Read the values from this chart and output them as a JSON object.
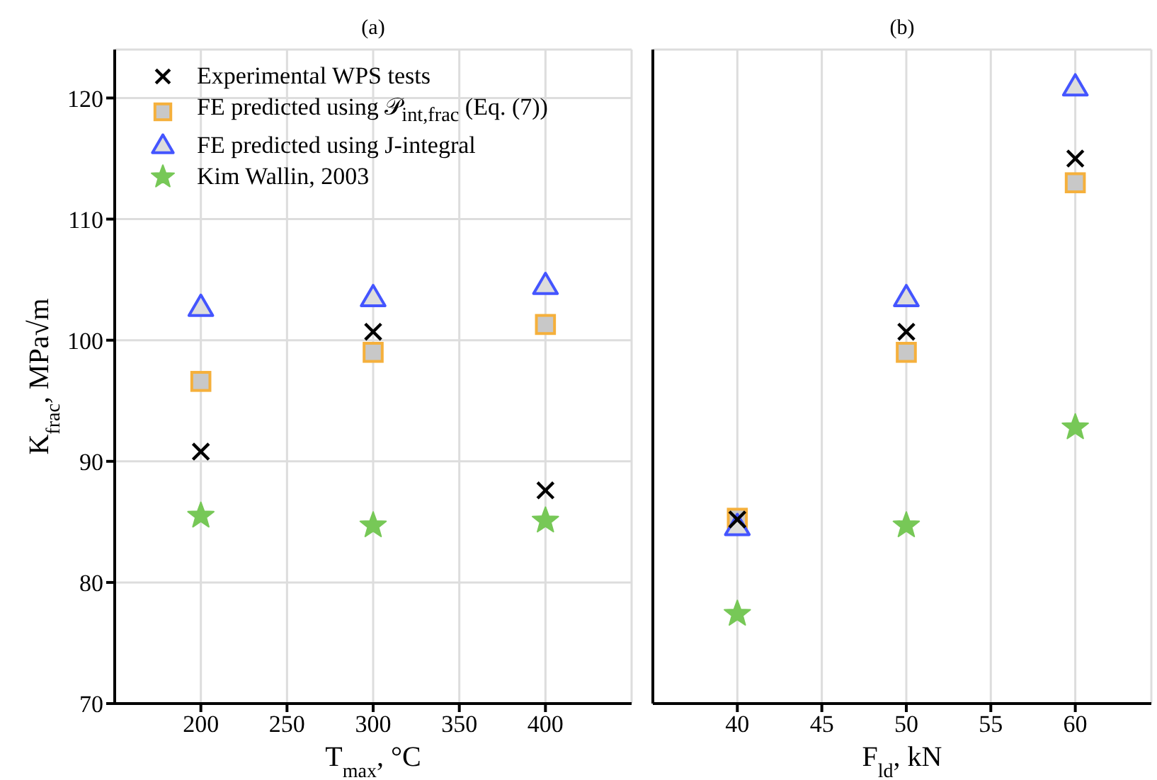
{
  "chart_data": [
    {
      "type": "scatter",
      "title": "(a)",
      "xlabel": "T$_{max}$, °C",
      "ylabel": "K$_{frac}$, MPa√m",
      "x": [
        200,
        300,
        400
      ],
      "xlim": [
        150,
        450
      ],
      "xticks": [
        200,
        250,
        300,
        350,
        400
      ],
      "ylim": [
        70,
        124
      ],
      "yticks": [
        70,
        80,
        90,
        100,
        110,
        120
      ],
      "grid": true,
      "legend": "top left",
      "series": [
        {
          "name": "Experimental WPS tests",
          "color": "#000000",
          "marker": "cross",
          "values": [
            90.8,
            100.7,
            87.6
          ]
        },
        {
          "name": "FE predicted using 𝒫$_{int,frac}$ (Eq. (7))",
          "color": "#f5b03c",
          "marker": "square",
          "values": [
            96.6,
            99.0,
            101.3
          ]
        },
        {
          "name": "FE predicted using J-integral",
          "color": "#4455ff",
          "marker": "triangle",
          "values": [
            102.7,
            103.5,
            104.5
          ]
        },
        {
          "name": "Kim Wallin, 2003",
          "color": "#77c857",
          "marker": "star",
          "values": [
            85.5,
            84.7,
            85.1
          ]
        }
      ]
    },
    {
      "type": "scatter",
      "title": "(b)",
      "xlabel": "F$_{ld}$, kN",
      "x": [
        40,
        50,
        60
      ],
      "xlim": [
        35,
        64.5
      ],
      "xticks": [
        40,
        45,
        50,
        55,
        60
      ],
      "ylim": [
        70,
        124
      ],
      "yticks": [
        70,
        80,
        90,
        100,
        110,
        120
      ],
      "grid": true,
      "tick_labels": "x",
      "series": [
        {
          "color": "#000000",
          "marker": "cross",
          "values": [
            85.2,
            100.7,
            115.0
          ]
        },
        {
          "color": "#f5b03c",
          "marker": "square",
          "values": [
            85.3,
            99.0,
            113.0
          ]
        },
        {
          "color": "#4455ff",
          "marker": "triangle",
          "values": [
            84.6,
            103.5,
            120.9
          ]
        },
        {
          "color": "#77c857",
          "marker": "star",
          "values": [
            77.4,
            84.7,
            92.8
          ]
        }
      ]
    }
  ]
}
